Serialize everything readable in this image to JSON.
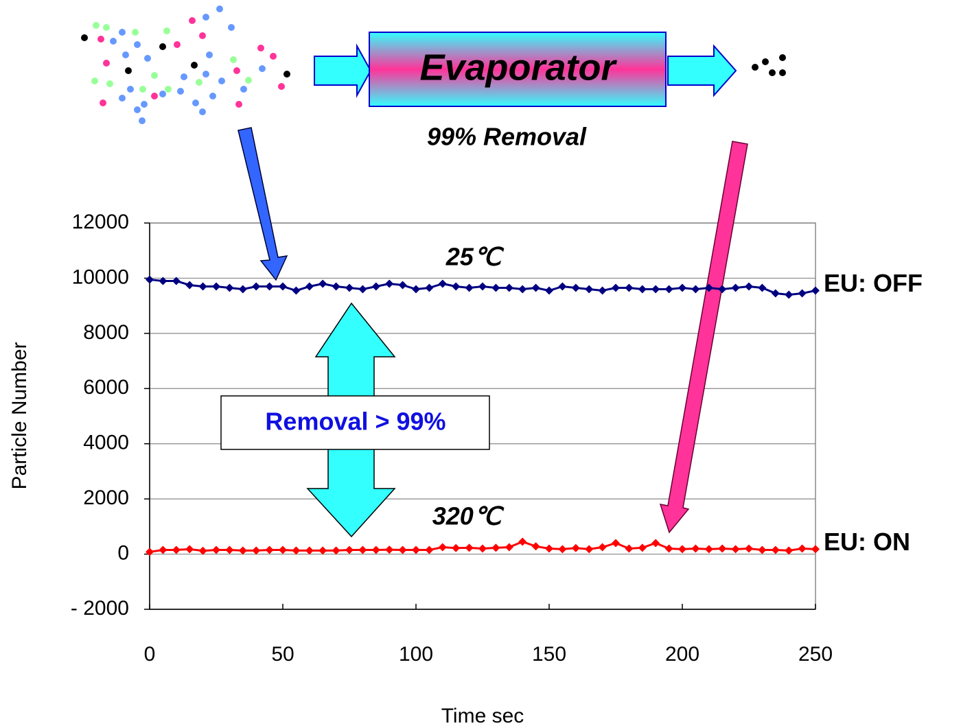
{
  "chart_data": {
    "type": "line",
    "x_label": "Time sec",
    "y_label": "Particle Number",
    "x": [
      0,
      5,
      10,
      15,
      20,
      25,
      30,
      35,
      40,
      45,
      50,
      55,
      60,
      65,
      70,
      75,
      80,
      85,
      90,
      95,
      100,
      105,
      110,
      115,
      120,
      125,
      130,
      135,
      140,
      145,
      150,
      155,
      160,
      165,
      170,
      175,
      180,
      185,
      190,
      195,
      200,
      205,
      210,
      215,
      220,
      225,
      230,
      235,
      240,
      245,
      250
    ],
    "series": [
      {
        "name": "EU: OFF",
        "color": "#000080",
        "values": [
          9950,
          9900,
          9900,
          9750,
          9700,
          9700,
          9650,
          9600,
          9700,
          9700,
          9700,
          9550,
          9700,
          9800,
          9700,
          9650,
          9600,
          9700,
          9800,
          9750,
          9600,
          9650,
          9800,
          9700,
          9650,
          9700,
          9650,
          9650,
          9600,
          9650,
          9550,
          9700,
          9650,
          9600,
          9550,
          9650,
          9650,
          9600,
          9600,
          9600,
          9650,
          9600,
          9650,
          9600,
          9650,
          9700,
          9650,
          9450,
          9400,
          9450,
          9550
        ]
      },
      {
        "name": "EU: ON",
        "color": "#ff0000",
        "values": [
          80,
          150,
          150,
          180,
          120,
          150,
          150,
          130,
          130,
          150,
          150,
          130,
          130,
          130,
          130,
          150,
          150,
          150,
          160,
          150,
          150,
          150,
          250,
          220,
          230,
          200,
          230,
          250,
          450,
          280,
          200,
          180,
          220,
          180,
          250,
          400,
          200,
          230,
          400,
          200,
          180,
          200,
          180,
          200,
          180,
          200,
          150,
          150,
          130,
          200,
          180
        ]
      }
    ],
    "xlim": [
      0,
      250
    ],
    "xticks": [
      0,
      50,
      100,
      150,
      200,
      250
    ],
    "ylim": [
      -2000,
      12000
    ],
    "yticks": [
      {
        "value": -2000,
        "label": "- 2000"
      },
      0,
      2000,
      4000,
      6000,
      8000,
      10000,
      12000
    ],
    "grid": true,
    "annotations": {
      "evaporator": "Evaporator",
      "removal_top": "99% Removal",
      "temp_off": "25℃",
      "temp_on": "320℃",
      "removal_box": "Removal > 99%"
    }
  }
}
